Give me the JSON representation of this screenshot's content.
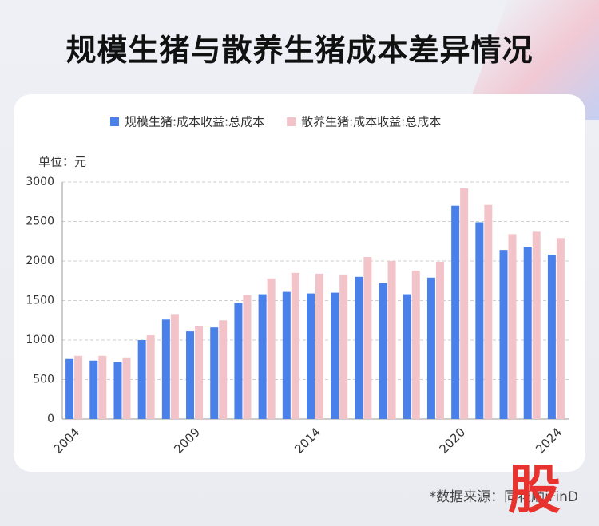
{
  "chart_data": {
    "type": "bar",
    "title": "规模生猪与散养生猪成本差异情况",
    "ylabel": "单位：元",
    "categories": [
      "2004",
      null,
      null,
      null,
      null,
      "2009",
      null,
      null,
      null,
      null,
      "2014",
      null,
      null,
      null,
      null,
      null,
      "2020",
      null,
      null,
      null,
      "2024"
    ],
    "series": [
      {
        "name": "规模生猪:成本收益:总成本",
        "color": "#4a80ea",
        "values": [
          760,
          740,
          720,
          1000,
          1260,
          1110,
          1160,
          1470,
          1580,
          1610,
          1590,
          1600,
          1800,
          1720,
          1580,
          1790,
          2700,
          2490,
          2140,
          2180,
          2080
        ]
      },
      {
        "name": "散养生猪:成本收益:总成本",
        "color": "#f2c3c8",
        "values": [
          800,
          800,
          780,
          1060,
          1320,
          1180,
          1250,
          1570,
          1780,
          1850,
          1840,
          1830,
          2050,
          2000,
          1880,
          1990,
          2920,
          2710,
          2340,
          2370,
          2290
        ]
      }
    ],
    "ylim": [
      0,
      3000
    ],
    "yticks": [
      0,
      500,
      1000,
      1500,
      2000,
      2500,
      3000
    ],
    "grid": true
  },
  "source": "*数据来源：同花顺iFinD",
  "logo": "股"
}
